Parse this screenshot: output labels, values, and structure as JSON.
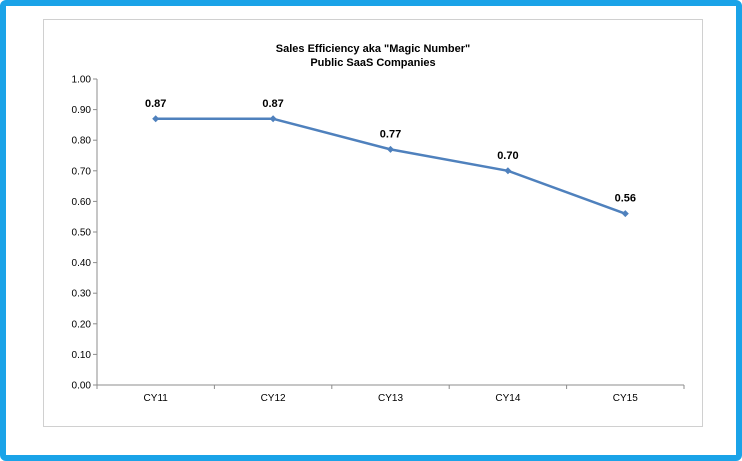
{
  "chart_data": {
    "type": "line",
    "title": "Sales Efficiency aka \"Magic Number\"",
    "subtitle": "Public SaaS Companies",
    "categories": [
      "CY11",
      "CY12",
      "CY13",
      "CY14",
      "CY15"
    ],
    "series": [
      {
        "values": [
          0.87,
          0.87,
          0.77,
          0.7,
          0.56
        ]
      }
    ],
    "data_labels": [
      "0.87",
      "0.87",
      "0.77",
      "0.70",
      "0.56"
    ],
    "yticks": [
      "0.00",
      "0.10",
      "0.20",
      "0.30",
      "0.40",
      "0.50",
      "0.60",
      "0.70",
      "0.80",
      "0.90",
      "1.00"
    ],
    "ylim": [
      0,
      1
    ],
    "grid": false,
    "line_color": "#4f81bd"
  },
  "colors": {
    "frame": "#1aa3e8"
  }
}
